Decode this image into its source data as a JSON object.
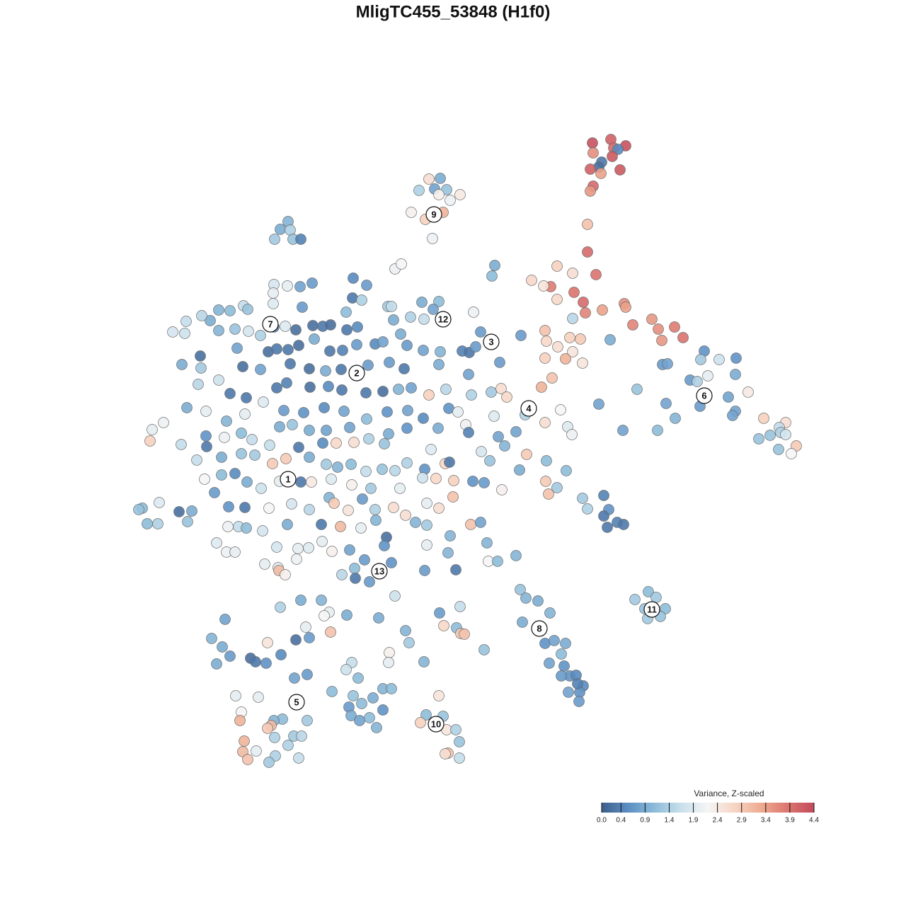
{
  "chart_data": {
    "type": "scatter",
    "title": "MligTC455_53848 (H1f0)",
    "x": [
      83.7,
      86.3,
      88.4,
      86.7,
      87.3,
      83.8,
      86.5,
      85,
      84.6,
      83.4,
      84.9,
      87.6,
      83.8,
      83.4,
      83,
      83,
      84.2,
      81.1,
      82.4,
      82.7,
      85.1,
      88.2,
      88.4,
      89.4,
      92.1,
      93,
      95.3,
      96.5,
      93.5,
      77.8,
      78.7,
      80.9,
      75.1,
      76.8,
      78.7,
      77,
      80.5,
      82,
      77.2,
      78.8,
      80.9,
      79.9,
      82.3,
      77,
      78,
      76.5,
      80.9,
      86.2,
      60.6,
      62.2,
      59.2,
      61.4,
      63.1,
      62,
      65,
      63.6,
      58.1,
      60.1,
      62.6,
      61.1,
      40.7,
      39.6,
      41,
      38.8,
      41.4,
      42.5,
      69.9,
      69.5,
      55.8,
      56.7,
      38.7,
      40.6,
      42.4,
      44.1,
      38.6,
      38.6,
      49.9,
      51.8,
      49.8,
      51.1,
      48.9,
      42.7,
      54.8,
      55.3,
      59.6,
      62,
      61.2,
      58,
      59.9,
      66.9,
      32.5,
      34.4,
      35,
      30.9,
      29.7,
      26.3,
      28.5,
      24.4,
      26.1,
      30.9,
      33.2,
      35.1,
      36.8,
      38.7,
      40.3,
      41.8,
      44.2,
      45.6,
      46.7,
      49,
      50.5,
      55.6,
      56.6,
      33.5,
      28.3,
      37.9,
      39.1,
      40.7,
      42.2,
      44.4,
      46.6,
      48.4,
      50.4,
      53,
      54.1,
      57.5,
      59.8,
      62.2,
      65.3,
      66.3,
      67.2,
      67.9,
      73.6,
      70.6,
      66.2,
      25.7,
      28.4,
      34.3,
      36.8,
      41,
      43.7,
      46,
      48.2,
      52,
      55,
      57.1,
      62,
      28,
      30.9,
      32.5,
      34.8,
      39.1,
      40.5,
      43.8,
      46.4,
      48.3,
      51.7,
      54.1,
      56.3,
      58.1,
      60.6,
      63,
      66.6,
      69.4,
      70.8,
      71.6,
      26.4,
      29.1,
      32,
      34.6,
      37.2,
      40.1,
      42.9,
      45.8,
      48.6,
      51.8,
      54.7,
      57.6,
      59.8,
      63.4,
      64.7,
      69.8,
      74.2,
      79.2,
      21.5,
      23.1,
      29.1,
      34.1,
      35.6,
      39.5,
      41.3,
      43.7,
      46.1,
      49.4,
      52.1,
      54.9,
      57.5,
      61.9,
      65.8,
      66.2,
      70.4,
      72.9,
      77,
      80.2,
      80.8,
      21.2,
      25.6,
      29.2,
      31.7,
      38.1,
      42.2,
      45.6,
      47.5,
      50,
      54.3,
      60.9,
      68,
      71.3,
      74.4,
      27.8,
      31.3,
      34.1,
      36,
      38.5,
      40.4,
      43.7,
      46.1,
      47.7,
      49.6,
      51.7,
      54,
      55.8,
      57.5,
      60,
      62.9,
      63.5,
      69.2,
      73.4,
      77.2,
      80,
      28.9,
      31.3,
      33.2,
      34.9,
      36.9,
      39.5,
      42.5,
      44,
      46.8,
      49.7,
      52.4,
      56.5,
      59.7,
      61.6,
      64.1,
      66.8,
      68.4,
      70.9,
      77.1,
      77.5,
      78.7,
      20.1,
      19.6,
      22.5,
      25.3,
      27.1,
      30.3,
      32.3,
      34.6,
      38,
      41.2,
      43.7,
      46.5,
      47.2,
      49.2,
      51.2,
      53,
      55.6,
      57.3,
      60.3,
      62,
      64,
      66.5,
      67.9,
      82.3,
      85.3,
      83,
      86,
      85.3,
      87.2,
      88.1,
      85.8,
      20.8,
      22.3,
      26.5,
      32.2,
      33.7,
      34.8,
      37.1,
      40.6,
      45.4,
      48.1,
      51,
      53.1,
      54.6,
      58.7,
      60.3,
      30.6,
      32,
      33.2,
      39.1,
      42.1,
      43.6,
      45.5,
      46.9,
      49.4,
      54.3,
      60.3,
      63.6,
      63.3,
      68.8,
      69,
      70.3,
      72.9,
      37.4,
      39.3,
      39.4,
      40.3,
      41.9,
      48.3,
      50.1,
      51.5,
      50.2,
      55.3,
      52.2,
      60,
      64.4,
      55.8,
      73.5,
      74.3,
      76,
      77.7,
      73.8,
      77,
      78.3,
      79.9,
      77.6,
      79.3,
      79.7,
      80.5,
      81.4,
      79.3,
      82.4,
      81.9,
      80.3,
      81.8,
      81.6,
      91.6,
      89.7,
      92.7,
      91.1,
      94,
      91.5,
      93.3,
      99.5,
      104,
      101.6,
      99,
      93.6,
      94.3,
      103.9,
      100,
      97.5,
      98.5,
      90,
      102.9,
      105.7,
      94.1,
      98.9,
      84.6,
      103.9,
      103.5,
      95.4,
      88,
      92.9,
      107.9,
      111,
      110.1,
      110.3,
      108.8,
      107.2,
      111,
      112.5,
      111.8,
      110,
      39.6,
      42.5,
      45.4,
      46.5,
      49,
      53.5,
      31.8,
      43.2,
      46.7,
      45.8,
      29.9,
      31.4,
      32.5,
      30.6,
      37.8,
      39.7,
      41.8,
      43.7,
      35.4,
      36.1,
      37.6,
      57.3,
      57.8,
      62.1,
      65,
      62.7,
      64.5,
      65.1,
      65.6,
      68.4,
      55,
      54.9,
      59.9,
      49.7,
      48.9,
      41.6,
      43.4,
      50.6,
      46.9,
      49.9,
      54.1,
      55.3,
      33.3,
      36.5,
      49.3,
      51.1,
      52.7,
      54.1,
      34.1,
      49.6,
      50.8,
      52.2,
      53.2,
      39.9,
      38.7,
      38.3,
      37.8,
      43.4,
      33.9,
      62,
      60.2,
      62.6,
      59.4,
      63.1,
      64.4,
      64.9,
      41.5,
      42.6,
      38.8,
      40.7,
      34.5,
      36.2,
      34.3,
      38.9,
      35,
      38,
      42.2,
      63.3,
      62.9,
      64.9
    ],
    "values": [
      107.8,
      108.3,
      107.4,
      107.1,
      106.9,
      106.4,
      105.9,
      105.1,
      104.4,
      104.1,
      103.5,
      104,
      101.7,
      101,
      96.3,
      92.4,
      89.2,
      86.7,
      85.3,
      83.8,
      84.2,
      85.1,
      84.6,
      82.1,
      82.9,
      81.5,
      81.8,
      80.3,
      79.9,
      87.5,
      90.4,
      89.4,
      88.4,
      87.6,
      85.7,
      81.3,
      80.3,
      80.1,
      79.8,
      79,
      78.3,
      77.3,
      76.7,
      77.4,
      74.6,
      73.3,
      83,
      80,
      102.7,
      102.8,
      101.1,
      101.3,
      101.2,
      100.5,
      100.5,
      99.7,
      98,
      97,
      98,
      94.3,
      96.7,
      95.6,
      95.5,
      94.2,
      94.2,
      94.2,
      90.5,
      89,
      90,
      90.7,
      87.8,
      87.6,
      87.5,
      88,
      86.6,
      85.1,
      88.7,
      87.7,
      85.9,
      85.6,
      83.9,
      84.6,
      84.7,
      84.7,
      85.3,
      85.4,
      84.3,
      83.2,
      82.9,
      83.9,
      84.1,
      84.8,
      84.3,
      84.2,
      82.7,
      82.6,
      83.4,
      81.1,
      80.9,
      81.3,
      81.5,
      81.2,
      80.6,
      81.8,
      81.9,
      81.4,
      82,
      81.9,
      82.1,
      81.4,
      81.8,
      82.8,
      80.8,
      78.8,
      77.7,
      78.3,
      78.7,
      78.6,
      79.2,
      80.1,
      78.4,
      78.5,
      79.3,
      79.4,
      79.7,
      79.2,
      78.5,
      78.3,
      78.4,
      78.2,
      79,
      81.1,
      80.6,
      76.8,
      75.1,
      76.5,
      76,
      76.2,
      75.8,
      76.6,
      75.9,
      75.6,
      75.8,
      76.4,
      76.8,
      75.9,
      76.5,
      73.7,
      74.3,
      72.4,
      71.8,
      73.2,
      73.9,
      73.3,
      73.4,
      72.9,
      72.5,
      72.7,
      73,
      73.2,
      72.2,
      73,
      72.2,
      72.6,
      73.1,
      71.9,
      70.4,
      69.9,
      68.5,
      69.5,
      71.2,
      70,
      69.7,
      70.4,
      69.9,
      68.8,
      69.8,
      70,
      68.9,
      70.3,
      69.8,
      69.2,
      69.4,
      70.1,
      67.3,
      68.3,
      66.4,
      66.8,
      65.9,
      67.7,
      68,
      67.2,
      67.2,
      67.6,
      66,
      66.7,
      67.5,
      67.5,
      68,
      66.9,
      66.3,
      67,
      68.3,
      67.7,
      66.6,
      65.7,
      65.2,
      64.9,
      66.2,
      65.1,
      64.8,
      65.4,
      65.4,
      65.5,
      65.3,
      64.5,
      64.2,
      65,
      63.8,
      63,
      63.4,
      63.9,
      63.7,
      62.5,
      63.2,
      63.4,
      62.4,
      62,
      62.4,
      61.4,
      61.7,
      61.5,
      62.6,
      61.7,
      62.5,
      62.7,
      62.9,
      61.6,
      62.9,
      61.5,
      60.3,
      60.9,
      61.1,
      59.9,
      59,
      60,
      59.9,
      59.9,
      60.3,
      59.5,
      59,
      59,
      60.5,
      60.4,
      60.1,
      60,
      59.8,
      58.8,
      60,
      58.2,
      59.1,
      56.2,
      56,
      57,
      55.7,
      55.8,
      58.4,
      56.4,
      56.3,
      56.2,
      56.8,
      56,
      57.7,
      56.9,
      55.9,
      57.5,
      56,
      56.3,
      55.2,
      56.9,
      56.2,
      57.8,
      53.9,
      54.2,
      57.6,
      58,
      56.1,
      56,
      55.1,
      54.2,
      53.9,
      53.5,
      54,
      54,
      54.3,
      53.6,
      53.6,
      53.4,
      53,
      53.9,
      53.9,
      53.6,
      53.4,
      54.5,
      52.1,
      54.2,
      53.8,
      51.3,
      50,
      50,
      50.7,
      50.5,
      50.6,
      51.5,
      50.1,
      50.3,
      50.9,
      51,
      52.3,
      49.9,
      51.3,
      48.7,
      48.7,
      49.5,
      48.3,
      47.8,
      47.4,
      46.8,
      49,
      46.8,
      47.7,
      48.9,
      46.3,
      48.5,
      45.8,
      47.4,
      47.5,
      43.8,
      44.7,
      43.5,
      43.1,
      41.4,
      40.1,
      37.1,
      37.5,
      37.1,
      34.3,
      35.6,
      33.9,
      32.5,
      32.6,
      32.5,
      31.1,
      30.2,
      30.2,
      28.9,
      31.4,
      44.4,
      43.3,
      43.6,
      42,
      42,
      40.6,
      40.9,
      78.4,
      77.4,
      77.2,
      77.2,
      76.5,
      76.6,
      75.1,
      74.9,
      74.3,
      74.1,
      73,
      71.9,
      72.6,
      71,
      70.6,
      70.9,
      69.9,
      69.3,
      68.9,
      67.2,
      67.2,
      68.9,
      68.3,
      67.6,
      66.9,
      66.5,
      66,
      66.6,
      65,
      63.9,
      64.5,
      42.2,
      43.2,
      43.2,
      41.5,
      41.1,
      40.7,
      40.5,
      39.4,
      38.7,
      41,
      37.8,
      36.6,
      35.3,
      34.2,
      37.2,
      35.5,
      37.6,
      37.9,
      35,
      34.5,
      34.3,
      38.9,
      37.2,
      41.4,
      42.3,
      39.6,
      39.3,
      38.5,
      38.4,
      36.2,
      35.8,
      34.4,
      34.5,
      34.4,
      33.4,
      32.2,
      32.7,
      32.2,
      30.3,
      29.7,
      30.7,
      30.7,
      29.7,
      29.5,
      28.1,
      28.6,
      29.4,
      27.7,
      27.4,
      26.9,
      26.2,
      26.6,
      25.2,
      26.4,
      26.2,
      25.5,
      25.1,
      26.2,
      26.2,
      29.7,
      27,
      26.8,
      25.9,
      24.9,
      24.9,
      23.2,
      24,
      24,
      23.8,
      22.7,
      23.3,
      21.9,
      21.8,
      21.2,
      20.7,
      20.3,
      20.9,
      21.6,
      21.5,
      20.9
    ],
    "color_values": [
      4.3,
      4.1,
      4.3,
      4.0,
      0.5,
      3.6,
      4.2,
      0.3,
      0.2,
      4.1,
      3.4,
      4.2,
      4.0,
      3.5,
      3.0,
      4.0,
      3.9,
      3.9,
      4.0,
      3.7,
      3.4,
      3.6,
      3.4,
      3.7,
      3.5,
      3.6,
      3.8,
      3.9,
      3.5,
      3.8,
      2.8,
      2.6,
      2.7,
      2.5,
      2.7,
      3.0,
      2.8,
      2.9,
      2.7,
      2.6,
      2.5,
      3.2,
      2.5,
      2.8,
      3.0,
      3.2,
      1.5,
      0.9,
      2.6,
      0.9,
      1.4,
      0.8,
      1.2,
      2.3,
      2.4,
      2.1,
      2.3,
      2.8,
      3.2,
      2.1,
      1.0,
      0.9,
      1.4,
      1.3,
      1.2,
      0.4,
      0.9,
      1.1,
      2.1,
      2.2,
      1.8,
      2.0,
      0.8,
      0.7,
      2.0,
      1.9,
      0.5,
      0.7,
      0.3,
      1.4,
      1.1,
      0.7,
      1.3,
      1.6,
      0.9,
      1.1,
      0.8,
      1.4,
      1.6,
      2.1,
      1.1,
      1.6,
      1.2,
      1.0,
      0.9,
      1.6,
      1.5,
      1.8,
      1.7,
      1.0,
      1.2,
      1.8,
      1.4,
      0.4,
      1.9,
      0.2,
      0.2,
      0.3,
      0.2,
      0.3,
      0.5,
      0.9,
      0.9,
      0.8,
      0.2,
      0.2,
      0.3,
      0.3,
      0.2,
      0.9,
      0.3,
      0.4,
      0.7,
      0.5,
      0.8,
      0.7,
      0.8,
      1.0,
      0.4,
      0.3,
      0.7,
      0.7,
      0.7,
      0.7,
      0.8,
      0.9,
      1.3,
      0.2,
      0.8,
      0.3,
      0.2,
      0.9,
      0.3,
      0.7,
      0.7,
      0.3,
      0.9,
      1.5,
      1.7,
      0.3,
      0.3,
      0.3,
      0.4,
      0.2,
      0.5,
      0.3,
      0.3,
      0.2,
      1.0,
      0.8,
      2.8,
      1.5,
      1.4,
      1.3,
      2.6,
      2.7,
      0.9,
      2.0,
      1.0,
      2.0,
      1.9,
      0.7,
      0.6,
      0.5,
      0.8,
      1.1,
      0.6,
      0.8,
      0.5,
      0.6,
      2.0,
      1.9,
      1.4,
      2.2,
      2.0,
      2.1,
      0.6,
      1.1,
      1.6,
      0.9,
      1.2,
      0.9,
      0.8,
      0.8,
      1.4,
      0.9,
      0.6,
      0.9,
      2.1,
      0.4,
      0.8,
      0.8,
      2.6,
      1.9,
      2.1,
      2.8,
      1.6,
      0.3,
      2.1,
      1.6,
      0.3,
      0.5,
      2.7,
      2.6,
      1.2,
      1.9,
      1.8,
      1.0,
      2.9,
      1.6,
      0.9,
      1.2,
      1.3,
      2.9,
      2.9,
      0.9,
      1.3,
      1.0,
      1.1,
      1.6,
      1.2,
      1.5,
      1.4,
      0.6,
      2.7,
      0.3,
      1.2,
      0.9,
      1.1,
      1.1,
      2.2,
      1.1,
      0.5,
      0.9,
      1.7,
      2.0,
      0.3,
      2.4,
      1.9,
      2.3,
      1.3,
      2.0,
      1.7,
      2.7,
      2.8,
      0.6,
      0.7,
      2.3,
      2.9,
      3.0,
      1.3,
      1.1,
      1.2,
      1.9,
      0.2,
      0.9,
      0.7,
      0.6,
      0.3,
      2.2,
      1.8,
      1.5,
      1.0,
      2.9,
      2.5,
      0.7,
      1.4,
      2.6,
      2.6,
      2.0,
      2.6,
      3.0,
      3.0,
      0.8,
      1.3,
      0.4,
      1.4,
      0.6,
      0.3,
      0.4,
      0.3,
      0.3,
      1.1,
      1.4,
      1.2,
      2.1,
      1.6,
      1.1,
      1.8,
      0.9,
      0.3,
      3.1,
      2.0,
      1.0,
      0.2,
      1.0,
      1.3,
      1.9,
      2.1,
      2.0,
      1.8,
      2.0,
      1.9,
      2.0,
      2.3,
      0.8,
      0.6,
      2.0,
      1.0,
      1.0,
      1.0,
      2.2,
      1.1,
      1.0,
      2.0,
      2.0,
      3.1,
      2.3,
      2.1,
      1.5,
      1.1,
      0.7,
      0.3,
      0.6,
      0.7,
      0.7,
      0.3,
      1.7,
      1.2,
      1.0,
      0.9,
      1.0,
      0.9,
      0.6,
      0.8,
      0.9,
      0.8,
      1.1,
      0.6,
      0.6,
      0.5,
      0.7,
      0.5,
      0.6,
      0.8,
      0.7,
      0.4,
      1.1,
      1.3,
      1.3,
      1.2,
      1.1,
      1.3,
      1.2,
      0.6,
      0.6,
      1.7,
      1.3,
      0.7,
      0.8,
      0.9,
      2.0,
      0.7,
      1.4,
      1.2,
      0.8,
      2.4,
      0.8,
      0.7,
      0.8,
      0.8,
      0.8,
      1.0,
      0.8,
      1.1,
      2.8,
      2.6,
      1.6,
      1.4,
      1.2,
      1.2,
      1.8,
      2.9,
      2.2,
      1.2,
      1.4,
      0.9,
      1.0,
      2.0,
      0.9,
      0.9,
      0.8,
      2.0,
      3.0,
      2.2,
      1.0,
      0.9,
      0.7,
      0.9,
      2.5,
      0.5,
      0.2,
      0.7,
      0.2,
      0.3,
      0.6,
      1.0,
      1.3,
      0.7,
      1.6,
      2.7,
      1.1,
      2.9,
      3.0,
      1.2,
      2.3,
      2.0,
      1.0,
      1.6,
      1.7,
      0.8,
      0.7,
      1.1,
      1.1,
      1.2,
      1.0,
      1.1,
      2.0,
      2.0,
      0.7,
      1.1,
      0.9,
      0.6,
      2.2,
      0.9,
      0.8,
      1.1,
      1.0,
      1.1,
      1.0,
      3.1,
      2.9,
      1.3,
      3.2,
      2.5,
      1.1,
      1.2,
      2.8,
      2.5,
      1.4,
      1.2,
      1.3,
      1.5,
      1.4,
      1.4,
      3.2,
      2.0,
      3.1,
      1.4,
      3.0,
      1.3,
      1.6,
      3.0,
      2.6,
      1.6
    ],
    "annotations": [
      {
        "text": "1",
        "x": 40.7,
        "y": 60.3
      },
      {
        "text": "2",
        "x": 50.4,
        "y": 75.3
      },
      {
        "text": "3",
        "x": 69.4,
        "y": 79.7
      },
      {
        "text": "4",
        "x": 74.7,
        "y": 70.3
      },
      {
        "text": "5",
        "x": 41.9,
        "y": 28.8
      },
      {
        "text": "6",
        "x": 99.5,
        "y": 72.1
      },
      {
        "text": "7",
        "x": 38.2,
        "y": 82.2
      },
      {
        "text": "8",
        "x": 76.2,
        "y": 39.2
      },
      {
        "text": "9",
        "x": 61.3,
        "y": 97.7
      },
      {
        "text": "10",
        "x": 61.6,
        "y": 25.7
      },
      {
        "text": "11",
        "x": 92.1,
        "y": 41.9
      },
      {
        "text": "12",
        "x": 62.6,
        "y": 82.9
      },
      {
        "text": "13",
        "x": 53.6,
        "y": 47.3
      }
    ],
    "colorbar": {
      "title": "Variance, Z-scaled",
      "lim": [
        0,
        4.4
      ],
      "ticks": [
        {
          "value": 0,
          "label": "0.0"
        },
        0.4,
        0.9,
        1.4,
        1.9,
        2.4,
        2.9,
        3.4,
        3.9,
        4.4
      ],
      "colormap": [
        "#3f5e8a",
        "#5b8fc4",
        "#8dbcd9",
        "#c9e0ec",
        "#f5f5f5",
        "#f7d5c4",
        "#eeab90",
        "#dc7670",
        "#c24a5a"
      ]
    }
  }
}
